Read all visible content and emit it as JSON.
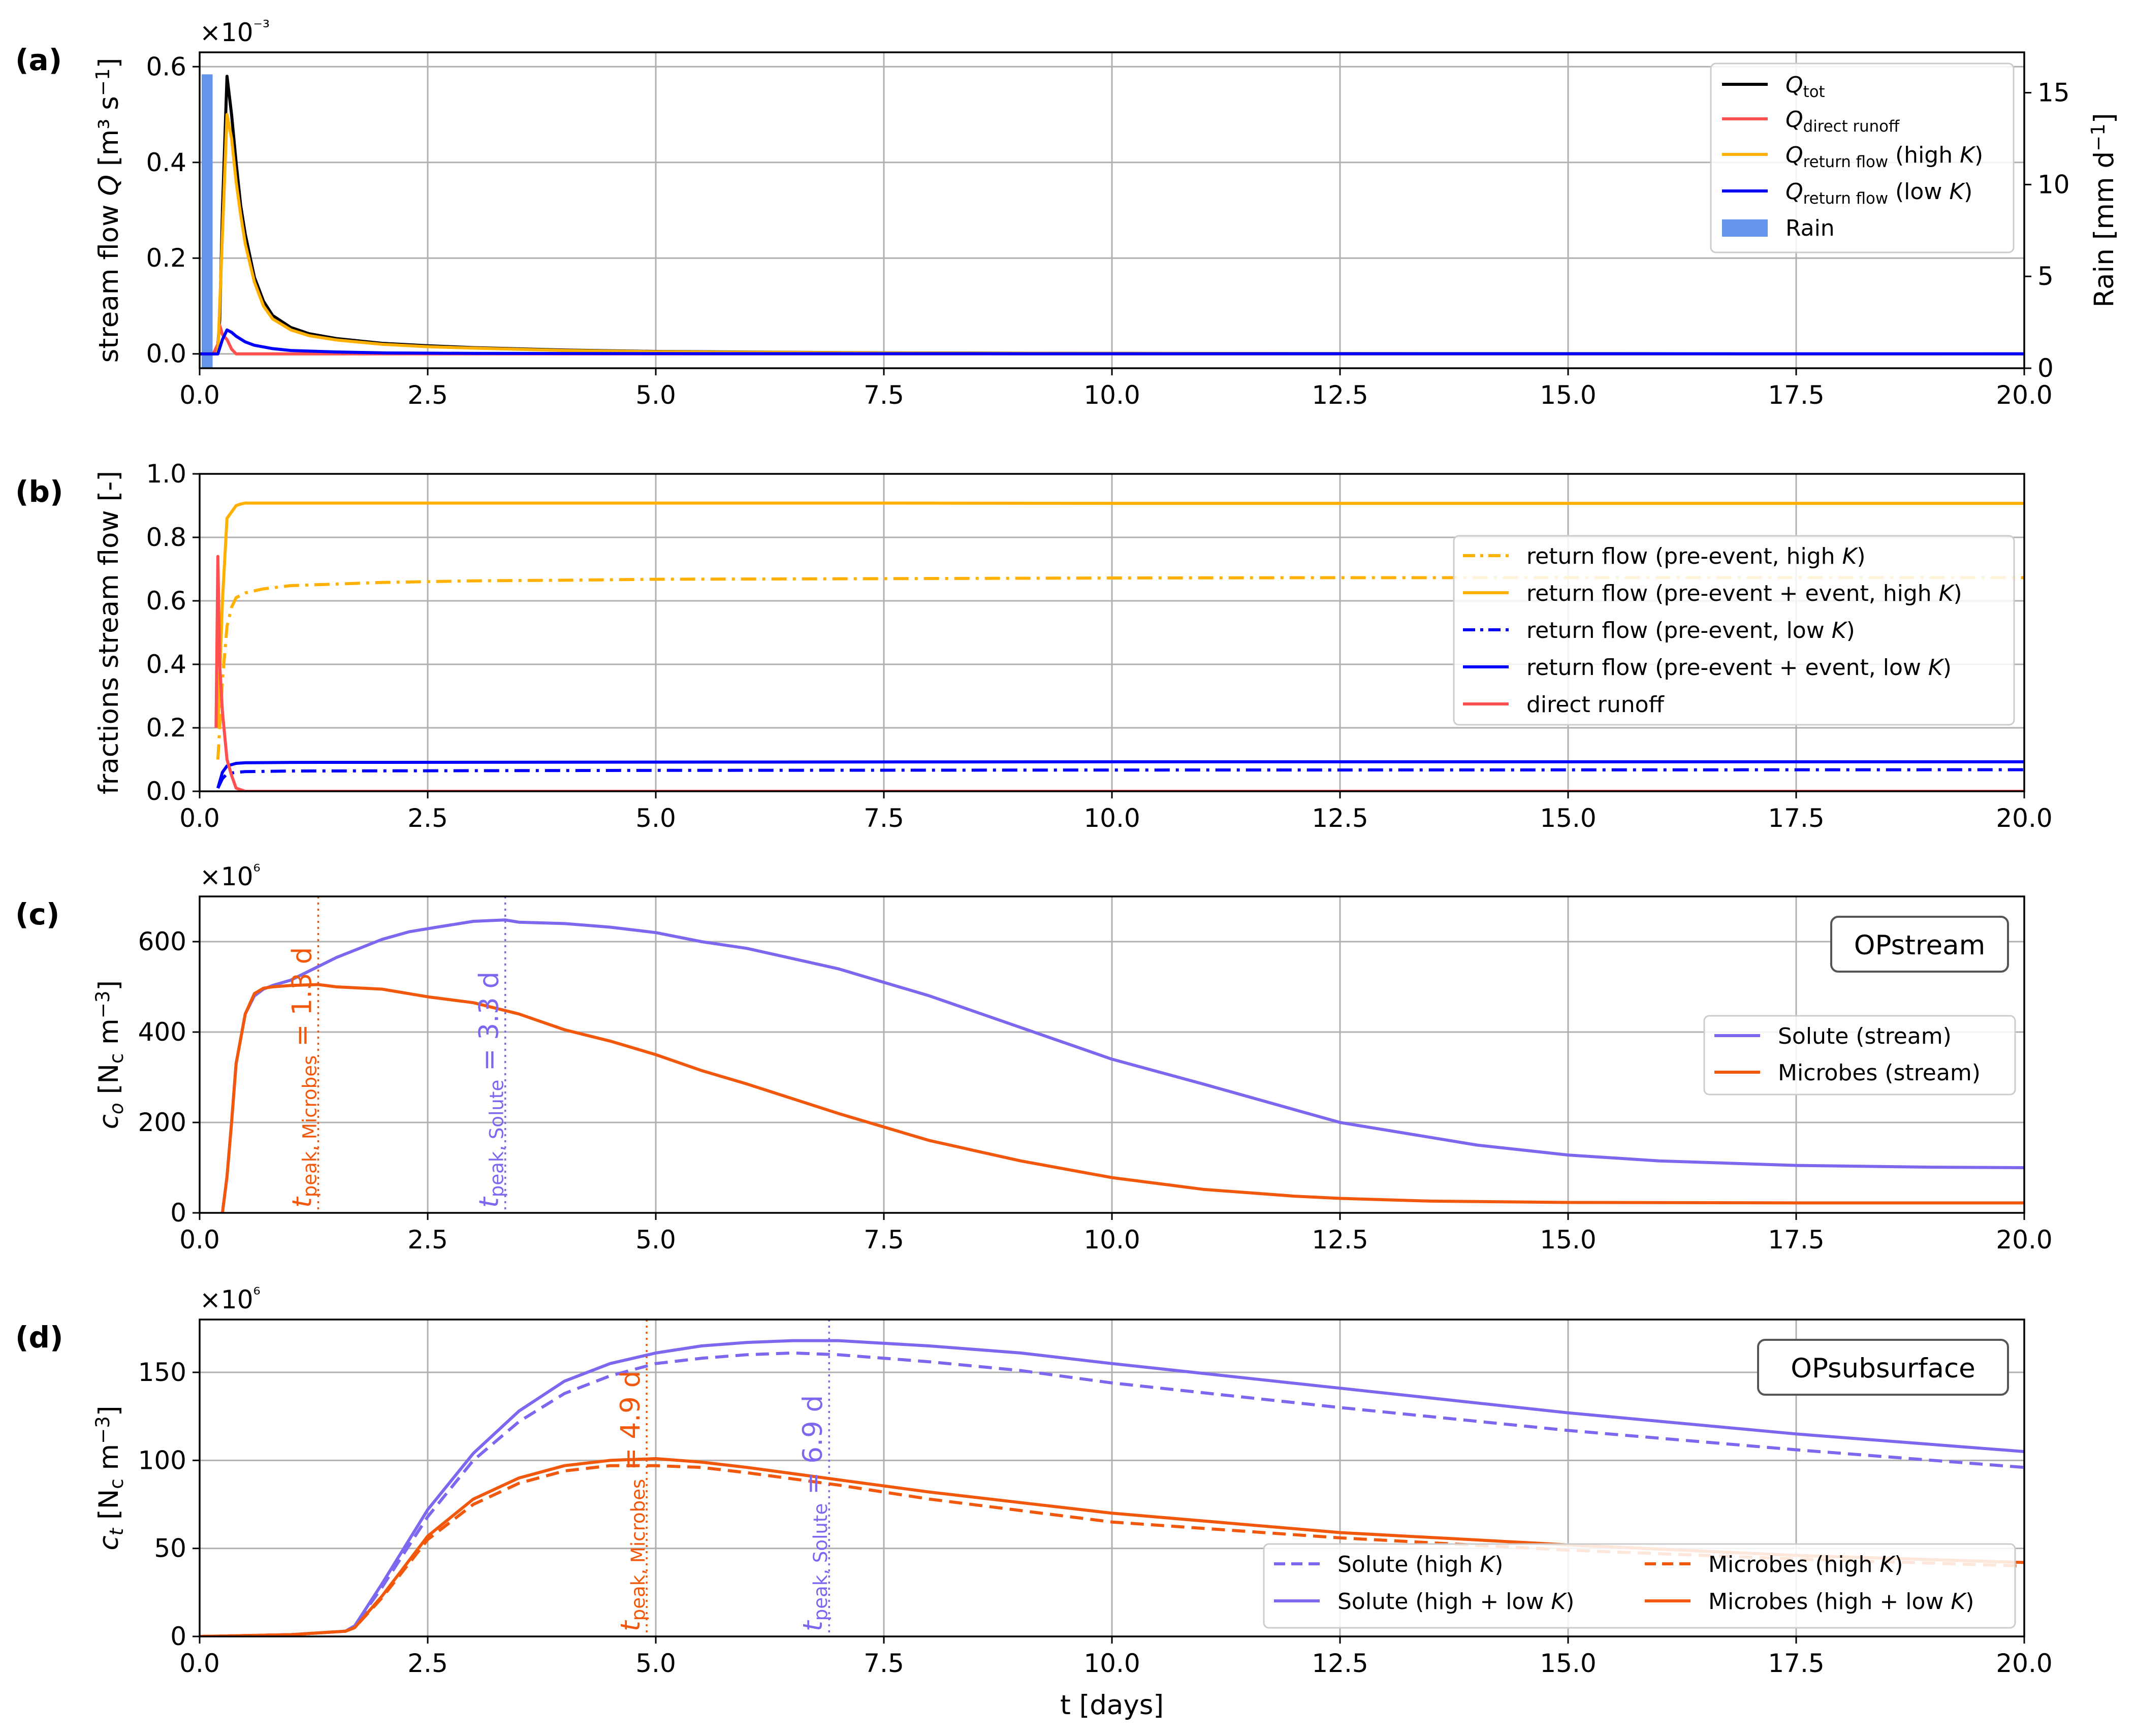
{
  "chart_data": [
    {
      "panel": "(a)",
      "type": "line",
      "xlabel": "",
      "ylabel": "stream flow Q [m³ s⁻¹]",
      "y_multiplier": "×10⁻³",
      "y2label": "Rain [mm d⁻¹]",
      "xlim": [
        0,
        20
      ],
      "ylim": [
        -0.03,
        0.63
      ],
      "y2lim": [
        0,
        17.2
      ],
      "xticks": [
        "0.0",
        "2.5",
        "5.0",
        "7.5",
        "10.0",
        "12.5",
        "15.0",
        "17.5",
        "20.0"
      ],
      "yticks": [
        "0.0",
        "0.2",
        "0.4",
        "0.6"
      ],
      "y2ticks": [
        "0",
        "5",
        "10",
        "15"
      ],
      "grid": true,
      "legend_position": "upper-right",
      "rain_bar": {
        "x0": 0.0,
        "x1": 0.12,
        "value": 16.0,
        "color": "#6495ED",
        "name": "Rain"
      },
      "series": [
        {
          "name": "Q_tot",
          "color": "#000000",
          "x": [
            0,
            0.15,
            0.2,
            0.22,
            0.25,
            0.3,
            0.35,
            0.4,
            0.45,
            0.5,
            0.6,
            0.7,
            0.8,
            1.0,
            1.2,
            1.5,
            2.0,
            2.5,
            3.0,
            4.0,
            5.0,
            7.5,
            10,
            12.5,
            15,
            17.5,
            20
          ],
          "y": [
            0,
            0,
            0.02,
            0.07,
            0.3,
            0.58,
            0.5,
            0.4,
            0.31,
            0.25,
            0.16,
            0.11,
            0.08,
            0.055,
            0.042,
            0.032,
            0.022,
            0.017,
            0.013,
            0.008,
            0.005,
            0.002,
            0.001,
            0.0005,
            0.0003,
            0.0002,
            0.0001
          ]
        },
        {
          "name": "Q_direct runoff",
          "color": "#FF4F4F",
          "x": [
            0,
            0.15,
            0.2,
            0.22,
            0.25,
            0.3,
            0.35,
            0.4,
            0.5,
            1.0,
            20
          ],
          "y": [
            0,
            0,
            0.02,
            0.06,
            0.04,
            0.03,
            0.01,
            0.0,
            0.0,
            0.0,
            0.0
          ]
        },
        {
          "name": "Q_return flow (high K)",
          "color": "#FFB000",
          "x": [
            0,
            0.2,
            0.25,
            0.3,
            0.35,
            0.4,
            0.45,
            0.5,
            0.6,
            0.7,
            0.8,
            1.0,
            1.2,
            1.5,
            2.0,
            2.5,
            3.0,
            4.0,
            5.0,
            7.5,
            10,
            12.5,
            15,
            17.5,
            20
          ],
          "y": [
            0,
            0,
            0.25,
            0.5,
            0.45,
            0.36,
            0.29,
            0.23,
            0.15,
            0.1,
            0.073,
            0.05,
            0.038,
            0.029,
            0.02,
            0.015,
            0.012,
            0.007,
            0.0045,
            0.0018,
            0.0009,
            0.0005,
            0.0003,
            0.0002,
            0.0001
          ]
        },
        {
          "name": "Q_return flow (low K)",
          "color": "#0000FF",
          "x": [
            0,
            0.2,
            0.25,
            0.3,
            0.35,
            0.4,
            0.5,
            0.6,
            0.8,
            1.0,
            1.5,
            2.0,
            3.0,
            5.0,
            10,
            20
          ],
          "y": [
            0,
            0,
            0.03,
            0.05,
            0.045,
            0.037,
            0.025,
            0.018,
            0.011,
            0.007,
            0.004,
            0.002,
            0.001,
            0.0005,
            0.0002,
            0.0001
          ]
        }
      ]
    },
    {
      "panel": "(b)",
      "type": "line",
      "xlabel": "",
      "ylabel": "fractions stream flow [-]",
      "xlim": [
        0,
        20
      ],
      "ylim": [
        0,
        1.0
      ],
      "xticks": [
        "0.0",
        "2.5",
        "5.0",
        "7.5",
        "10.0",
        "12.5",
        "15.0",
        "17.5",
        "20.0"
      ],
      "yticks": [
        "0.0",
        "0.2",
        "0.4",
        "0.6",
        "0.8",
        "1.0"
      ],
      "grid": true,
      "legend_position": "center-right",
      "series": [
        {
          "name": "return flow (pre-event, high K)",
          "color": "#FFB000",
          "style": "dashdot",
          "x": [
            0.2,
            0.25,
            0.3,
            0.35,
            0.4,
            0.5,
            0.7,
            1.0,
            2.0,
            3.0,
            4.0,
            5.0,
            7.5,
            10,
            12.5,
            15,
            17.5,
            20
          ],
          "y": [
            0.1,
            0.35,
            0.52,
            0.58,
            0.61,
            0.625,
            0.638,
            0.648,
            0.658,
            0.663,
            0.665,
            0.668,
            0.67,
            0.672,
            0.673,
            0.673,
            0.673,
            0.673
          ]
        },
        {
          "name": "return flow (pre-event + event, high K)",
          "color": "#FFB000",
          "style": "solid",
          "x": [
            0.2,
            0.25,
            0.3,
            0.35,
            0.4,
            0.45,
            0.5,
            1.0,
            3.0,
            5.0,
            7.5,
            10,
            15,
            20
          ],
          "y": [
            0.2,
            0.6,
            0.86,
            0.88,
            0.9,
            0.905,
            0.908,
            0.908,
            0.908,
            0.908,
            0.908,
            0.907,
            0.907,
            0.907
          ]
        },
        {
          "name": "return flow (pre-event, low K)",
          "color": "#0000FF",
          "style": "dashdot",
          "x": [
            0.2,
            0.25,
            0.3,
            0.4,
            0.5,
            1.0,
            5.0,
            10,
            20
          ],
          "y": [
            0.01,
            0.04,
            0.055,
            0.06,
            0.062,
            0.064,
            0.066,
            0.067,
            0.068
          ]
        },
        {
          "name": "return flow (pre-event + event, low K)",
          "color": "#0000FF",
          "style": "solid",
          "x": [
            0.2,
            0.25,
            0.3,
            0.4,
            0.5,
            1.0,
            5.0,
            10,
            20
          ],
          "y": [
            0.01,
            0.06,
            0.08,
            0.088,
            0.09,
            0.091,
            0.092,
            0.093,
            0.093
          ]
        },
        {
          "name": "direct runoff",
          "color": "#FF4F4F",
          "style": "solid",
          "x": [
            0.18,
            0.2,
            0.22,
            0.25,
            0.3,
            0.35,
            0.4,
            0.5,
            1.0,
            5.0,
            10,
            20
          ],
          "y": [
            0.2,
            0.74,
            0.4,
            0.25,
            0.1,
            0.05,
            0.01,
            0.0,
            0.0,
            0.0,
            0.0,
            0.0
          ]
        }
      ]
    },
    {
      "panel": "(c)",
      "type": "line",
      "xlabel": "",
      "ylabel": "c_o [N_c m⁻³]",
      "y_multiplier": "×10⁶",
      "xlim": [
        0,
        20
      ],
      "ylim": [
        0,
        700
      ],
      "xticks": [
        "0.0",
        "2.5",
        "5.0",
        "7.5",
        "10.0",
        "12.5",
        "15.0",
        "17.5",
        "20.0"
      ],
      "yticks": [
        "0",
        "200",
        "400",
        "600"
      ],
      "grid": true,
      "legend_position": "center-right",
      "box_label": "OPstream",
      "peaks": [
        {
          "label": "t_peak, Microbes = 1.3 d",
          "x": 1.3,
          "color": "#F2580C"
        },
        {
          "label": "t_peak, Solute = 3.3 d",
          "x": 3.35,
          "color": "#7B68EE"
        }
      ],
      "series": [
        {
          "name": "Solute (stream)",
          "color": "#7B68EE",
          "x": [
            0.25,
            0.3,
            0.35,
            0.4,
            0.5,
            0.6,
            0.7,
            0.8,
            1.0,
            1.3,
            1.5,
            2.0,
            2.3,
            2.6,
            3.0,
            3.35,
            3.5,
            4.0,
            4.5,
            5.0,
            5.5,
            6.0,
            7.0,
            8.0,
            9.0,
            10.0,
            11.0,
            12.5,
            14.0,
            15.0,
            16.0,
            17.5,
            19.0,
            20.0
          ],
          "y": [
            0,
            80,
            200,
            330,
            440,
            480,
            495,
            503,
            515,
            545,
            565,
            605,
            622,
            632,
            645,
            648,
            643,
            640,
            632,
            620,
            600,
            585,
            540,
            480,
            410,
            340,
            285,
            200,
            150,
            128,
            115,
            105,
            101,
            100
          ]
        },
        {
          "name": "Microbes (stream)",
          "color": "#F2580C",
          "x": [
            0.25,
            0.3,
            0.35,
            0.4,
            0.5,
            0.6,
            0.7,
            0.8,
            1.0,
            1.3,
            1.5,
            2.0,
            2.5,
            3.0,
            3.5,
            4.0,
            4.5,
            5.0,
            5.5,
            6.0,
            7.0,
            8.0,
            9.0,
            10.0,
            11.0,
            12.0,
            12.5,
            13.5,
            15.0,
            17.5,
            20.0
          ],
          "y": [
            0,
            80,
            200,
            330,
            440,
            485,
            497,
            500,
            503,
            505,
            500,
            495,
            478,
            465,
            440,
            405,
            380,
            350,
            315,
            285,
            220,
            160,
            115,
            78,
            52,
            37,
            32,
            26,
            23,
            22,
            22
          ]
        }
      ]
    },
    {
      "panel": "(d)",
      "type": "line",
      "xlabel": "t [days]",
      "ylabel": "c_t [N_c m⁻³]",
      "y_multiplier": "×10⁶",
      "xlim": [
        0,
        20
      ],
      "ylim": [
        0,
        180
      ],
      "xticks": [
        "0.0",
        "2.5",
        "5.0",
        "7.5",
        "10.0",
        "12.5",
        "15.0",
        "17.5",
        "20.0"
      ],
      "yticks": [
        "0",
        "50",
        "100",
        "150"
      ],
      "grid": true,
      "legend_position": "lower-right",
      "box_label": "OPsubsurface",
      "peaks": [
        {
          "label": "t_peak, Microbes = 4.9 d",
          "x": 4.9,
          "color": "#F2580C"
        },
        {
          "label": "t_peak, Solute = 6.9 d",
          "x": 6.9,
          "color": "#7B68EE"
        }
      ],
      "series": [
        {
          "name": "Solute (high K)",
          "color": "#7B68EE",
          "style": "dashed",
          "x": [
            0,
            1.0,
            1.6,
            1.7,
            2.0,
            2.5,
            3.0,
            3.5,
            4.0,
            4.5,
            5.0,
            5.5,
            6.0,
            6.5,
            7.0,
            8.0,
            9.0,
            10.0,
            12.5,
            15.0,
            17.5,
            20.0
          ],
          "y": [
            0,
            1,
            3,
            6,
            28,
            68,
            100,
            122,
            138,
            148,
            155,
            158,
            160,
            161,
            160,
            156,
            151,
            144,
            130,
            117,
            106,
            96
          ]
        },
        {
          "name": "Solute (high + low K)",
          "color": "#7B68EE",
          "style": "solid",
          "x": [
            0,
            1.0,
            1.6,
            1.7,
            2.0,
            2.5,
            3.0,
            3.5,
            4.0,
            4.5,
            5.0,
            5.5,
            6.0,
            6.5,
            7.0,
            8.0,
            9.0,
            10.0,
            12.5,
            15.0,
            17.5,
            20.0
          ],
          "y": [
            0,
            1,
            3,
            6,
            30,
            72,
            104,
            128,
            145,
            155,
            161,
            165,
            167,
            168,
            168,
            165,
            161,
            155,
            141,
            127,
            115,
            105
          ]
        },
        {
          "name": "Microbes (high K)",
          "color": "#F2580C",
          "style": "dashed",
          "x": [
            0,
            1.0,
            1.6,
            1.7,
            2.0,
            2.5,
            3.0,
            3.5,
            4.0,
            4.5,
            5.0,
            5.5,
            6.0,
            7.0,
            8.0,
            10.0,
            12.5,
            15.0,
            17.5,
            20.0
          ],
          "y": [
            0,
            1,
            3,
            5,
            22,
            55,
            75,
            87,
            94,
            97,
            97,
            96,
            93,
            86,
            78,
            65,
            56,
            49,
            44,
            40
          ]
        },
        {
          "name": "Microbes (high + low K)",
          "color": "#F2580C",
          "style": "solid",
          "x": [
            0,
            1.0,
            1.6,
            1.7,
            2.0,
            2.5,
            3.0,
            3.5,
            4.0,
            4.5,
            5.0,
            5.5,
            6.0,
            7.0,
            8.0,
            10.0,
            12.5,
            15.0,
            17.5,
            20.0
          ],
          "y": [
            0,
            1,
            3,
            5,
            23,
            57,
            78,
            90,
            97,
            100,
            101,
            99,
            96,
            89,
            82,
            70,
            59,
            52,
            46,
            42
          ]
        }
      ]
    }
  ]
}
